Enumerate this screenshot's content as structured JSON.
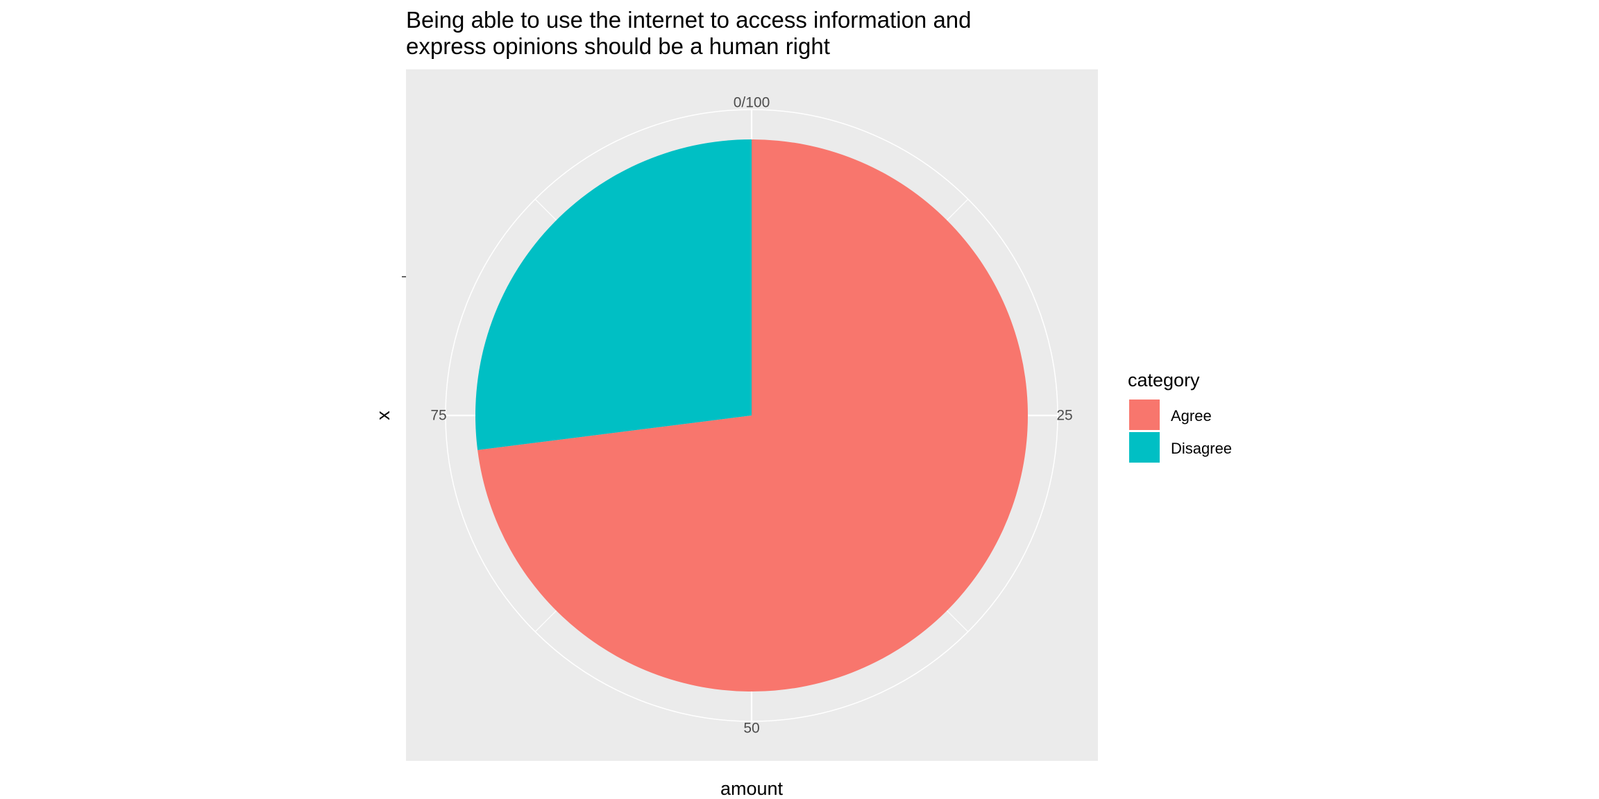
{
  "chart_data": {
    "type": "pie",
    "title_lines": [
      "Being able to use the internet to access information and",
      "express opinions should be a human right"
    ],
    "xlabel": "amount",
    "ylabel": "x",
    "categories": [
      "Agree",
      "Disagree"
    ],
    "values": [
      73,
      27
    ],
    "colors": [
      "#F8766D",
      "#00BFC4"
    ],
    "theta_ticks": [
      {
        "value": 0,
        "label": "0/100"
      },
      {
        "value": 25,
        "label": "25"
      },
      {
        "value": 50,
        "label": "50"
      },
      {
        "value": 75,
        "label": "75"
      }
    ],
    "theta_range": [
      0,
      100
    ],
    "legend": {
      "title": "category",
      "position": "right"
    },
    "panel_background": "#EBEBEB",
    "grid": true
  }
}
